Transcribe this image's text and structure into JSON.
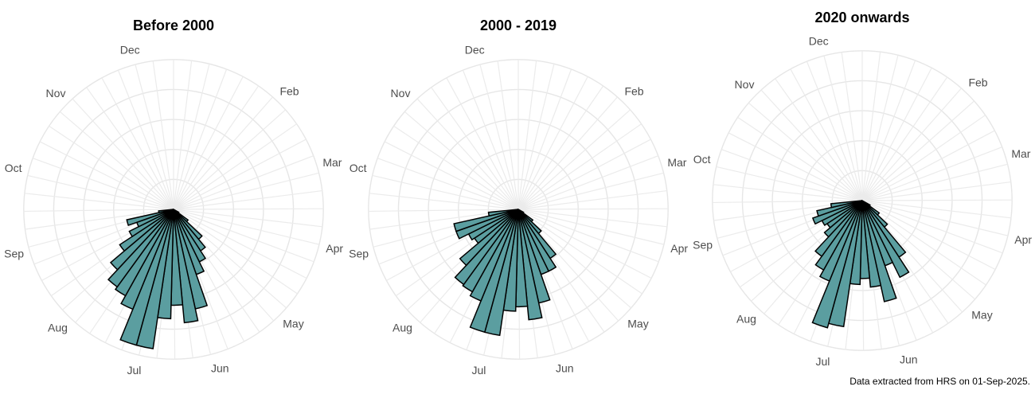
{
  "chart_data": [
    {
      "type": "bar",
      "polar": true,
      "title": "Before 2000",
      "month_labels": [
        "Dec",
        "Feb",
        "Mar",
        "Apr",
        "May",
        "Jun",
        "Jul",
        "Aug",
        "Sep",
        "Oct",
        "Nov"
      ],
      "bins_start_day": [
        121,
        128,
        135,
        142,
        149,
        156,
        163,
        170,
        177,
        184,
        191,
        198,
        205,
        212,
        219,
        226,
        233,
        240,
        247,
        254,
        261
      ],
      "values": [
        0.04,
        0.12,
        0.26,
        0.33,
        0.39,
        0.46,
        0.68,
        0.76,
        0.64,
        0.73,
        0.94,
        0.94,
        0.72,
        0.66,
        0.64,
        0.55,
        0.43,
        0.33,
        0.26,
        0.32,
        0.1
      ],
      "grid_rings": [
        0.2,
        0.4,
        0.6,
        0.8,
        1.0
      ],
      "max_value": 1.0
    },
    {
      "type": "bar",
      "polar": true,
      "title": "2000 - 2019",
      "month_labels": [
        "Dec",
        "Feb",
        "Mar",
        "Apr",
        "May",
        "Jun",
        "Jul",
        "Aug",
        "Sep",
        "Oct",
        "Nov"
      ],
      "bins_start_day": [
        121,
        128,
        135,
        142,
        149,
        156,
        163,
        170,
        177,
        184,
        191,
        198,
        205,
        212,
        219,
        226,
        233,
        240,
        247,
        254,
        261
      ],
      "values": [
        0.04,
        0.12,
        0.21,
        0.39,
        0.46,
        0.46,
        0.64,
        0.74,
        0.65,
        0.68,
        0.85,
        0.85,
        0.66,
        0.63,
        0.62,
        0.51,
        0.35,
        0.37,
        0.44,
        0.44,
        0.2
      ],
      "grid_rings": [
        0.2,
        0.4,
        0.6,
        0.8,
        1.0
      ],
      "max_value": 1.0
    },
    {
      "type": "bar",
      "polar": true,
      "title": "2020 onwards",
      "month_labels": [
        "Dec",
        "Feb",
        "Mar",
        "Apr",
        "May",
        "Jun",
        "Jul",
        "Aug",
        "Sep",
        "Oct",
        "Nov"
      ],
      "bins_start_day": [
        121,
        128,
        135,
        142,
        149,
        156,
        163,
        170,
        177,
        184,
        191,
        198,
        205,
        212,
        219,
        226,
        233,
        240,
        247,
        254,
        261
      ],
      "values": [
        0.06,
        0.14,
        0.23,
        0.45,
        0.57,
        0.46,
        0.69,
        0.58,
        0.52,
        0.56,
        0.85,
        0.88,
        0.58,
        0.53,
        0.46,
        0.33,
        0.28,
        0.3,
        0.35,
        0.31,
        0.21
      ],
      "grid_rings": [
        0.2,
        0.4,
        0.6,
        0.8,
        1.0
      ],
      "max_value": 1.0
    }
  ],
  "caption": "Data extracted from HRS on 01-Sep-2025."
}
